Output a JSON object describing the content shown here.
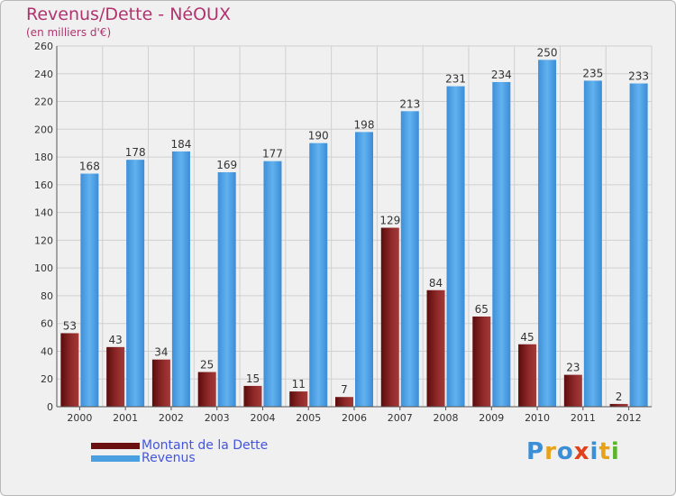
{
  "chart_data": {
    "type": "bar",
    "title": "Revenus/Dette - NéOUX",
    "subtitle": "(en milliers d'€)",
    "categories": [
      "2000",
      "2001",
      "2002",
      "2003",
      "2004",
      "2005",
      "2006",
      "2007",
      "2008",
      "2009",
      "2010",
      "2011",
      "2012"
    ],
    "series": [
      {
        "name": "Montant de la Dette",
        "color": "#7a1a1a",
        "values": [
          53,
          43,
          34,
          25,
          15,
          11,
          7,
          129,
          84,
          65,
          45,
          23,
          2
        ]
      },
      {
        "name": "Revenus",
        "color": "#4a9fe0",
        "values": [
          168,
          178,
          184,
          169,
          177,
          190,
          198,
          213,
          231,
          234,
          250,
          235,
          233
        ]
      }
    ],
    "yticks": [
      0,
      20,
      40,
      60,
      80,
      100,
      120,
      140,
      160,
      180,
      200,
      220,
      240,
      260
    ],
    "ylim": [
      0,
      260
    ],
    "grid": true,
    "xlabel": "",
    "ylabel": ""
  },
  "legend": {
    "debt_label": "Montant de la Dette",
    "revenue_label": "Revenus"
  },
  "logo": {
    "letters": [
      "P",
      "r",
      "o",
      "x",
      "i",
      "t",
      "i"
    ],
    "colors": [
      "#3b8fd6",
      "#e8a21a",
      "#3b8fd6",
      "#e0401a",
      "#3b8fd6",
      "#e8a21a",
      "#5ab52a"
    ]
  }
}
